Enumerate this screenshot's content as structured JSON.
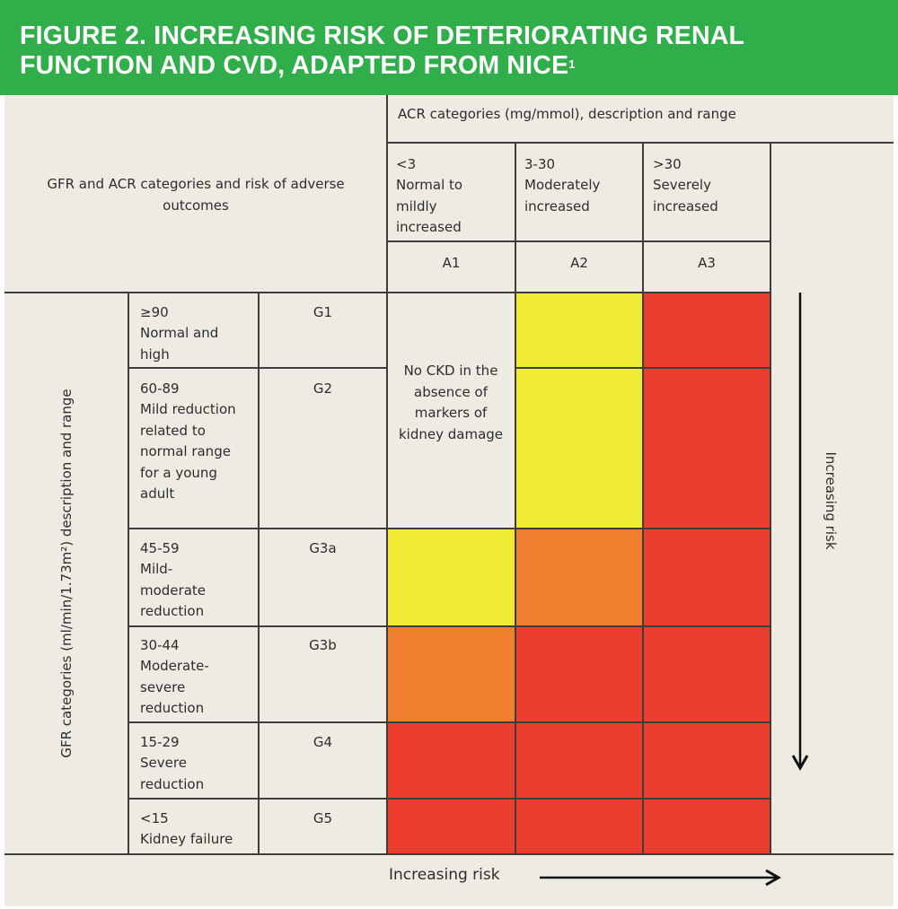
{
  "figure": {
    "title_line1": "FIGURE 2. INCREASING RISK OF DETERIORATING RENAL",
    "title_line2": "FUNCTION AND CVD, ADAPTED FROM NICE",
    "superscript": "1"
  },
  "header": {
    "corner_label": "GFR and ACR categories and risk of adverse outcomes",
    "acr_heading": "ACR categories (mg/mmol), description and range",
    "acr_columns": [
      {
        "range": "<3",
        "description": "Normal to mildly increased",
        "code": "A1"
      },
      {
        "range": "3-30",
        "description": "Moderately increased",
        "code": "A2"
      },
      {
        "range": ">30",
        "description": "Severely increased",
        "code": "A3"
      }
    ]
  },
  "gfr_axis_label": "GFR categories (ml/min/1.73m²) description and range",
  "gfr_rows": [
    {
      "range": "≥90",
      "description": "Normal and high",
      "code": "G1"
    },
    {
      "range": "60-89",
      "description": "Mild reduction related to normal range for a young adult",
      "code": "G2"
    },
    {
      "range": "45-59",
      "description": "Mild-moderate reduction",
      "code": "G3a"
    },
    {
      "range": "30-44",
      "description": "Moderate-severe reduction",
      "code": "G3b"
    },
    {
      "range": "15-29",
      "description": "Severe reduction",
      "code": "G4"
    },
    {
      "range": "<15",
      "description": "Kidney failure",
      "code": "G5"
    }
  ],
  "no_ckd_note": "No CKD in the absence of markers of kidney damage",
  "risk_grid": [
    [
      "none",
      "yellow",
      "red"
    ],
    [
      "none",
      "yellow",
      "red"
    ],
    [
      "yellow",
      "orange",
      "red"
    ],
    [
      "orange",
      "red",
      "red"
    ],
    [
      "red",
      "red",
      "red"
    ],
    [
      "red",
      "red",
      "red"
    ]
  ],
  "risk_colors": {
    "yellow": "#f0eb34",
    "orange": "#f07f2f",
    "red": "#ec3e2e",
    "banner": "#2fae4a"
  },
  "increasing_risk_vertical": "Increasing risk",
  "increasing_risk_horizontal": "Increasing risk"
}
